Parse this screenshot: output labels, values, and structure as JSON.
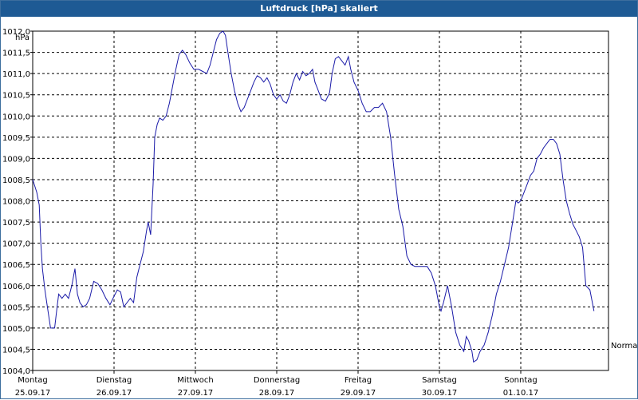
{
  "window": {
    "title": "Luftdruck [hPa] skaliert"
  },
  "chart_data": {
    "type": "line",
    "title": "Luftdruck [hPa] skaliert",
    "ylabel": "hPa",
    "xlabel": "",
    "ylim": [
      1004.0,
      1012.0
    ],
    "xlim": [
      0,
      7.17
    ],
    "grid": true,
    "y_ticks": [
      "1004,0",
      "1004,5",
      "1005,0",
      "1005,5",
      "1006,0",
      "1006,5",
      "1007,0",
      "1007,5",
      "1008,0",
      "1008,5",
      "1009,0",
      "1009,5",
      "1010,0",
      "1010,5",
      "1011,0",
      "1011,5",
      "1012,0"
    ],
    "x_ticks": [
      {
        "day": "Montag",
        "date": "25.09.17",
        "x": 0
      },
      {
        "day": "Dienstag",
        "date": "26.09.17",
        "x": 1
      },
      {
        "day": "Mittwoch",
        "date": "27.09.17",
        "x": 2
      },
      {
        "day": "Donnerstag",
        "date": "28.09.17",
        "x": 3
      },
      {
        "day": "Freitag",
        "date": "29.09.17",
        "x": 4
      },
      {
        "day": "Samstag",
        "date": "30.09.17",
        "x": 5
      },
      {
        "day": "Sonntag",
        "date": "01.10.17",
        "x": 6
      }
    ],
    "annotation": {
      "text": "Normal",
      "y": 1004.6
    },
    "line_color": "#1a1aa8",
    "series": [
      {
        "name": "",
        "points": [
          [
            0.0,
            1008.5
          ],
          [
            0.05,
            1008.2
          ],
          [
            0.08,
            1007.9
          ],
          [
            0.1,
            1007.0
          ],
          [
            0.12,
            1006.4
          ],
          [
            0.15,
            1005.9
          ],
          [
            0.18,
            1005.5
          ],
          [
            0.22,
            1005.0
          ],
          [
            0.27,
            1005.0
          ],
          [
            0.3,
            1005.5
          ],
          [
            0.32,
            1005.8
          ],
          [
            0.36,
            1005.7
          ],
          [
            0.4,
            1005.8
          ],
          [
            0.44,
            1005.7
          ],
          [
            0.48,
            1006.0
          ],
          [
            0.52,
            1006.4
          ],
          [
            0.55,
            1005.8
          ],
          [
            0.58,
            1005.6
          ],
          [
            0.62,
            1005.5
          ],
          [
            0.66,
            1005.55
          ],
          [
            0.7,
            1005.7
          ],
          [
            0.75,
            1006.1
          ],
          [
            0.8,
            1006.05
          ],
          [
            0.85,
            1005.9
          ],
          [
            0.9,
            1005.7
          ],
          [
            0.95,
            1005.55
          ],
          [
            1.0,
            1005.75
          ],
          [
            1.04,
            1005.9
          ],
          [
            1.08,
            1005.85
          ],
          [
            1.12,
            1005.5
          ],
          [
            1.16,
            1005.6
          ],
          [
            1.2,
            1005.7
          ],
          [
            1.24,
            1005.6
          ],
          [
            1.28,
            1006.2
          ],
          [
            1.32,
            1006.5
          ],
          [
            1.36,
            1006.8
          ],
          [
            1.4,
            1007.3
          ],
          [
            1.42,
            1007.5
          ],
          [
            1.45,
            1007.2
          ],
          [
            1.48,
            1008.4
          ],
          [
            1.5,
            1009.5
          ],
          [
            1.53,
            1009.8
          ],
          [
            1.56,
            1009.95
          ],
          [
            1.6,
            1009.9
          ],
          [
            1.64,
            1010.0
          ],
          [
            1.68,
            1010.3
          ],
          [
            1.72,
            1010.7
          ],
          [
            1.76,
            1011.1
          ],
          [
            1.8,
            1011.45
          ],
          [
            1.84,
            1011.55
          ],
          [
            1.88,
            1011.45
          ],
          [
            1.93,
            1011.25
          ],
          [
            1.98,
            1011.1
          ],
          [
            2.04,
            1011.1
          ],
          [
            2.09,
            1011.05
          ],
          [
            2.14,
            1011.0
          ],
          [
            2.18,
            1011.2
          ],
          [
            2.22,
            1011.5
          ],
          [
            2.26,
            1011.8
          ],
          [
            2.3,
            1011.95
          ],
          [
            2.34,
            1012.0
          ],
          [
            2.37,
            1011.9
          ],
          [
            2.4,
            1011.5
          ],
          [
            2.44,
            1011.0
          ],
          [
            2.48,
            1010.6
          ],
          [
            2.52,
            1010.3
          ],
          [
            2.56,
            1010.1
          ],
          [
            2.6,
            1010.2
          ],
          [
            2.64,
            1010.4
          ],
          [
            2.68,
            1010.6
          ],
          [
            2.72,
            1010.8
          ],
          [
            2.76,
            1010.95
          ],
          [
            2.8,
            1010.9
          ],
          [
            2.84,
            1010.8
          ],
          [
            2.88,
            1010.9
          ],
          [
            2.92,
            1010.75
          ],
          [
            2.96,
            1010.5
          ],
          [
            3.0,
            1010.4
          ],
          [
            3.04,
            1010.5
          ],
          [
            3.08,
            1010.35
          ],
          [
            3.12,
            1010.3
          ],
          [
            3.16,
            1010.5
          ],
          [
            3.2,
            1010.8
          ],
          [
            3.24,
            1011.0
          ],
          [
            3.28,
            1010.85
          ],
          [
            3.32,
            1011.05
          ],
          [
            3.36,
            1010.95
          ],
          [
            3.4,
            1011.0
          ],
          [
            3.44,
            1011.1
          ],
          [
            3.47,
            1010.8
          ],
          [
            3.5,
            1010.65
          ],
          [
            3.55,
            1010.4
          ],
          [
            3.6,
            1010.35
          ],
          [
            3.65,
            1010.55
          ],
          [
            3.68,
            1011.0
          ],
          [
            3.72,
            1011.35
          ],
          [
            3.76,
            1011.4
          ],
          [
            3.8,
            1011.3
          ],
          [
            3.84,
            1011.2
          ],
          [
            3.88,
            1011.4
          ],
          [
            3.91,
            1011.1
          ],
          [
            3.95,
            1010.8
          ],
          [
            4.0,
            1010.6
          ],
          [
            4.05,
            1010.3
          ],
          [
            4.1,
            1010.1
          ],
          [
            4.15,
            1010.1
          ],
          [
            4.2,
            1010.2
          ],
          [
            4.25,
            1010.2
          ],
          [
            4.3,
            1010.3
          ],
          [
            4.35,
            1010.1
          ],
          [
            4.4,
            1009.5
          ],
          [
            4.45,
            1008.6
          ],
          [
            4.5,
            1007.8
          ],
          [
            4.55,
            1007.4
          ],
          [
            4.6,
            1006.7
          ],
          [
            4.65,
            1006.5
          ],
          [
            4.7,
            1006.45
          ],
          [
            4.75,
            1006.45
          ],
          [
            4.8,
            1006.45
          ],
          [
            4.85,
            1006.45
          ],
          [
            4.9,
            1006.3
          ],
          [
            4.95,
            1006.0
          ],
          [
            5.0,
            1005.5
          ],
          [
            5.02,
            1005.4
          ],
          [
            5.05,
            1005.6
          ],
          [
            5.1,
            1006.0
          ],
          [
            5.15,
            1005.5
          ],
          [
            5.2,
            1004.9
          ],
          [
            5.25,
            1004.6
          ],
          [
            5.3,
            1004.45
          ],
          [
            5.33,
            1004.8
          ],
          [
            5.36,
            1004.7
          ],
          [
            5.4,
            1004.45
          ],
          [
            5.42,
            1004.2
          ],
          [
            5.46,
            1004.25
          ],
          [
            5.5,
            1004.45
          ],
          [
            5.55,
            1004.6
          ],
          [
            5.6,
            1004.9
          ],
          [
            5.65,
            1005.3
          ],
          [
            5.7,
            1005.8
          ],
          [
            5.75,
            1006.1
          ],
          [
            5.8,
            1006.5
          ],
          [
            5.85,
            1006.9
          ],
          [
            5.9,
            1007.5
          ],
          [
            5.94,
            1008.0
          ],
          [
            5.97,
            1007.95
          ],
          [
            6.0,
            1008.0
          ],
          [
            6.04,
            1008.2
          ],
          [
            6.08,
            1008.4
          ],
          [
            6.12,
            1008.6
          ],
          [
            6.16,
            1008.7
          ],
          [
            6.2,
            1009.0
          ],
          [
            6.24,
            1009.1
          ],
          [
            6.28,
            1009.25
          ],
          [
            6.32,
            1009.35
          ],
          [
            6.36,
            1009.45
          ],
          [
            6.4,
            1009.45
          ],
          [
            6.44,
            1009.35
          ],
          [
            6.48,
            1009.1
          ],
          [
            6.52,
            1008.5
          ],
          [
            6.56,
            1008.0
          ],
          [
            6.6,
            1007.7
          ],
          [
            6.64,
            1007.45
          ],
          [
            6.68,
            1007.3
          ],
          [
            6.72,
            1007.15
          ],
          [
            6.76,
            1006.9
          ],
          [
            6.8,
            1006.0
          ],
          [
            6.85,
            1005.9
          ],
          [
            6.9,
            1005.4
          ]
        ]
      }
    ]
  }
}
